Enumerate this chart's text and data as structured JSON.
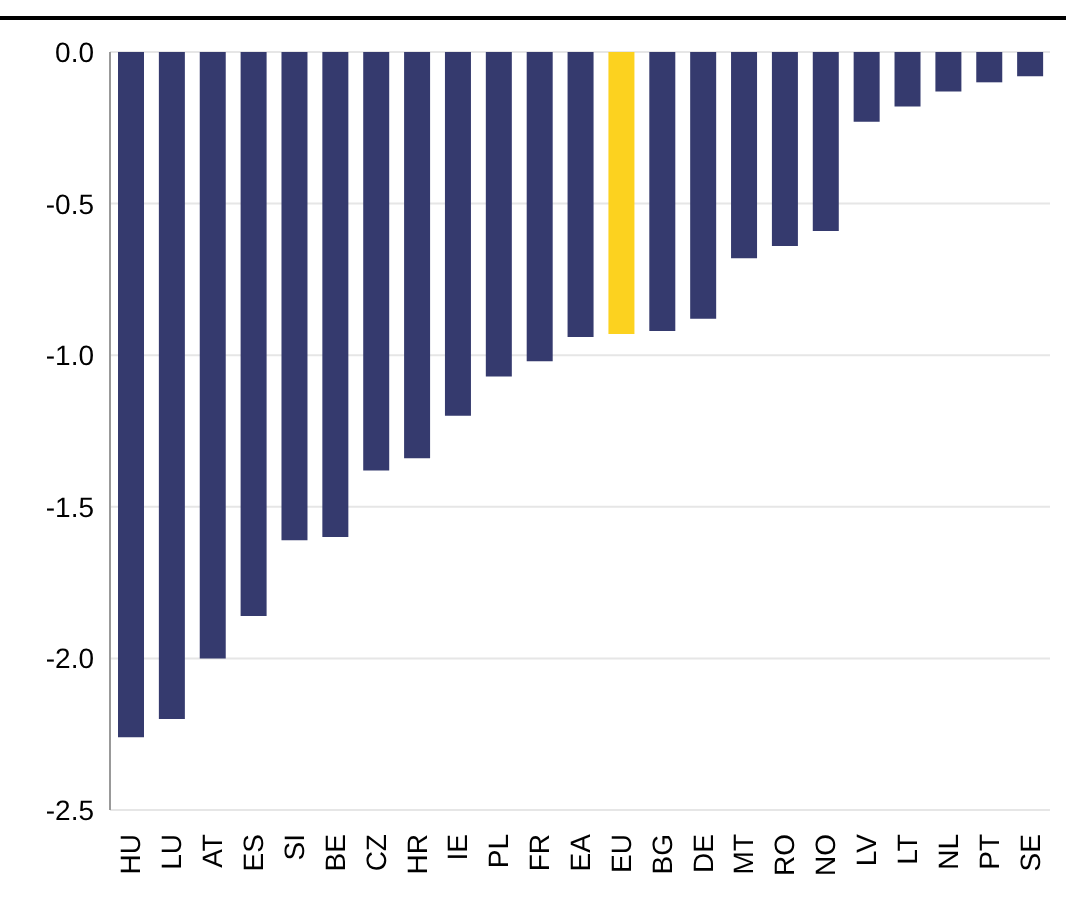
{
  "chart_data": {
    "type": "bar",
    "categories": [
      "HU",
      "LU",
      "AT",
      "ES",
      "SI",
      "BE",
      "CZ",
      "HR",
      "IE",
      "PL",
      "FR",
      "EA",
      "EU",
      "BG",
      "DE",
      "MT",
      "RO",
      "NO",
      "LV",
      "LT",
      "NL",
      "PT",
      "SE"
    ],
    "values": [
      -2.26,
      -2.2,
      -2.0,
      -1.86,
      -1.61,
      -1.6,
      -1.38,
      -1.34,
      -1.2,
      -1.07,
      -1.02,
      -0.94,
      -0.93,
      -0.92,
      -0.88,
      -0.68,
      -0.64,
      -0.59,
      -0.23,
      -0.18,
      -0.13,
      -0.1,
      -0.08
    ],
    "colors": [
      "#353a6e",
      "#353a6e",
      "#353a6e",
      "#353a6e",
      "#353a6e",
      "#353a6e",
      "#353a6e",
      "#353a6e",
      "#353a6e",
      "#353a6e",
      "#353a6e",
      "#353a6e",
      "#fcd21f",
      "#353a6e",
      "#353a6e",
      "#353a6e",
      "#353a6e",
      "#353a6e",
      "#353a6e",
      "#353a6e",
      "#353a6e",
      "#353a6e",
      "#353a6e"
    ],
    "ylim": [
      -2.5,
      0
    ],
    "yticks": [
      {
        "value": 0,
        "label": "0.0"
      },
      {
        "value": -0.5,
        "label": "-0.5"
      },
      {
        "value": -1,
        "label": "-1.0"
      },
      {
        "value": -1.5,
        "label": "-1.5"
      },
      {
        "value": -2,
        "label": "-2.0"
      },
      {
        "value": -2.5,
        "label": "-2.5"
      }
    ],
    "grid": "y"
  }
}
